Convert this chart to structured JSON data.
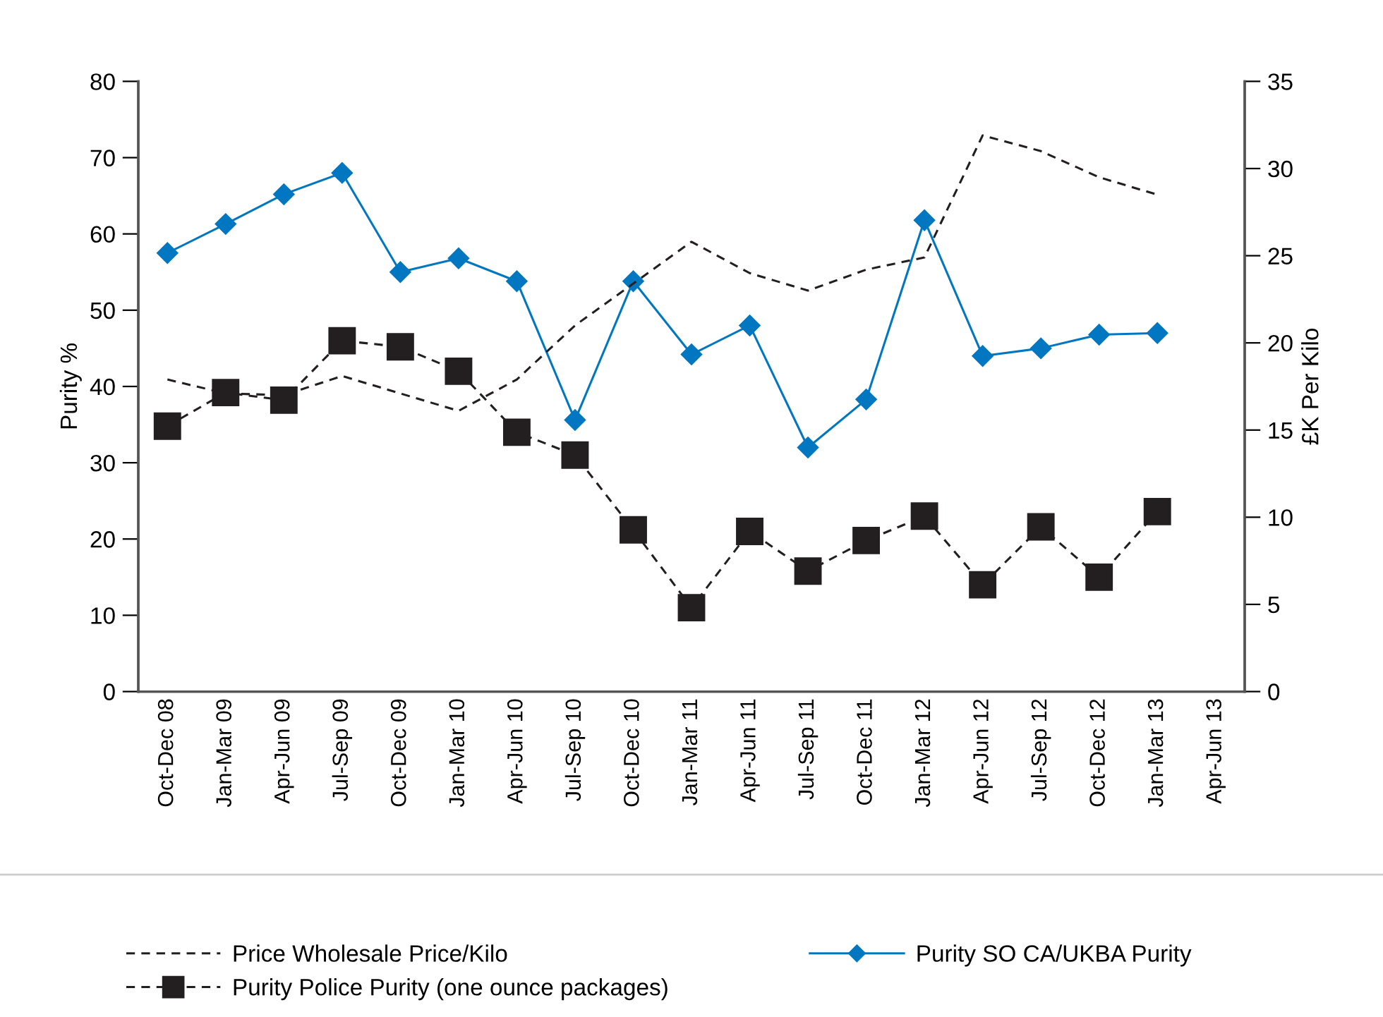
{
  "chart_data": {
    "type": "line",
    "ylabel": "Purity %",
    "y2label": "£K Per Kilo",
    "categories": [
      "Oct-Dec 08",
      "Jan-Mar 09",
      "Apr-Jun 09",
      "Jul-Sep 09",
      "Oct-Dec 09",
      "Jan-Mar 10",
      "Apr-Jun 10",
      "Jul-Sep 10",
      "Oct-Dec 10",
      "Jan-Mar 11",
      "Apr-Jun 11",
      "Jul-Sep 11",
      "Oct-Dec 11",
      "Jan-Mar 12",
      "Apr-Jun 12",
      "Jul-Sep 12",
      "Oct-Dec 12",
      "Jan-Mar 13",
      "Apr-Jun 13"
    ],
    "series": [
      {
        "name": "Price Wholesale Price/Kilo",
        "color": "#231f20",
        "axis": "y2",
        "marker": "none",
        "line_style": "dashed",
        "values": [
          17.9,
          17.1,
          17.0,
          18.1,
          17.1,
          16.1,
          17.9,
          21.0,
          23.4,
          25.8,
          24.0,
          23.0,
          24.2,
          24.9,
          31.9,
          31.0,
          29.5,
          28.5,
          null
        ]
      },
      {
        "name": "Purity SO CA/UKBA Purity",
        "color": "#0077c0",
        "marker": "diamond",
        "line_style": "solid",
        "values": [
          57.5,
          61.3,
          65.2,
          68,
          55,
          56.8,
          53.8,
          35.6,
          53.8,
          44.2,
          48,
          32,
          38.3,
          61.8,
          44,
          45,
          46.8,
          47,
          null
        ]
      },
      {
        "name": "Purity Police Purity (one ounce packages)",
        "color": "#231f20",
        "marker": "square",
        "line_style": "dashed",
        "values": [
          34.8,
          39.2,
          38.2,
          46,
          45.2,
          42,
          34,
          31,
          21.2,
          11,
          21,
          15.8,
          19.8,
          23,
          14,
          21.6,
          15,
          23.6,
          null
        ]
      }
    ],
    "ylim": [
      0,
      80
    ],
    "yticks": [
      0,
      10,
      20,
      30,
      40,
      50,
      60,
      70,
      80
    ],
    "y2lim": [
      0,
      35
    ],
    "y2ticks": [
      0,
      5,
      10,
      15,
      20,
      25,
      30,
      35
    ],
    "grid": false,
    "legend": "bottom"
  }
}
